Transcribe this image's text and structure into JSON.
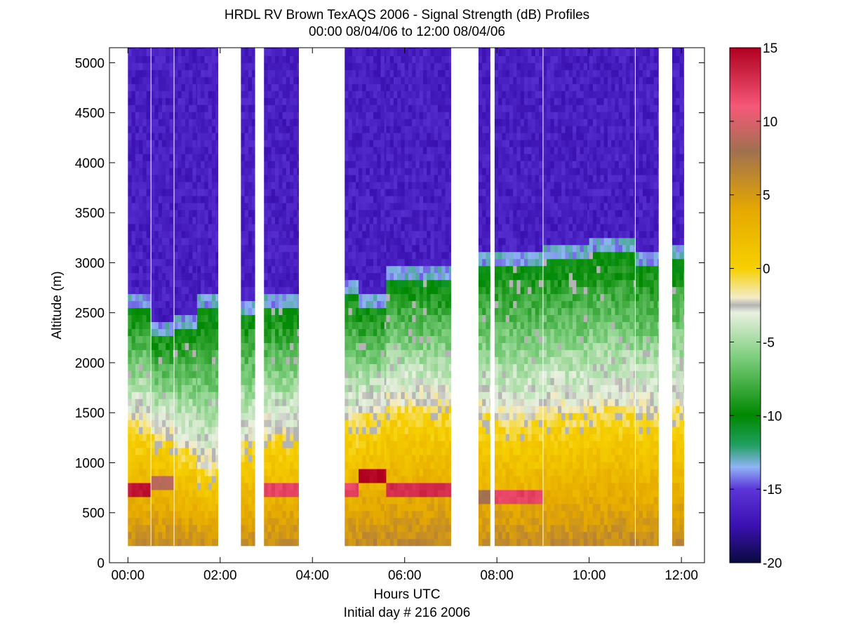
{
  "chart_data": {
    "type": "heatmap",
    "title": "HRDL RV Brown TexAQS 2006 - Signal Strength (dB) Profiles",
    "subtitle": "00:00 08/04/06 to 12:00 08/04/06",
    "xlabel": "Hours UTC",
    "footer": "Initial day # 216  2006",
    "ylabel": "Altitude (m)",
    "x_unit": "hours UTC",
    "xlim": [
      -0.4,
      12.5
    ],
    "ylim": [
      0,
      5150
    ],
    "x_ticks": [
      {
        "value": 0,
        "label": "00:00"
      },
      {
        "value": 2,
        "label": "02:00"
      },
      {
        "value": 4,
        "label": "04:00"
      },
      {
        "value": 6,
        "label": "06:00"
      },
      {
        "value": 8,
        "label": "08:00"
      },
      {
        "value": 10,
        "label": "10:00"
      },
      {
        "value": 12,
        "label": "12:00"
      }
    ],
    "y_ticks": [
      {
        "value": 0,
        "label": "0"
      },
      {
        "value": 500,
        "label": "500"
      },
      {
        "value": 1000,
        "label": "1000"
      },
      {
        "value": 1500,
        "label": "1500"
      },
      {
        "value": 2000,
        "label": "2000"
      },
      {
        "value": 2500,
        "label": "2500"
      },
      {
        "value": 3000,
        "label": "3000"
      },
      {
        "value": 3500,
        "label": "3500"
      },
      {
        "value": 4000,
        "label": "4000"
      },
      {
        "value": 4500,
        "label": "4500"
      },
      {
        "value": 5000,
        "label": "5000"
      }
    ],
    "colorbar": {
      "label_unit": "dB",
      "range": [
        -20,
        15
      ],
      "ticks": [
        {
          "value": 15,
          "label": "15"
        },
        {
          "value": 10,
          "label": "10"
        },
        {
          "value": 5,
          "label": "5"
        },
        {
          "value": 0,
          "label": "0"
        },
        {
          "value": -5,
          "label": "-5"
        },
        {
          "value": -10,
          "label": "-10"
        },
        {
          "value": -15,
          "label": "-15"
        },
        {
          "value": -20,
          "label": "-20"
        }
      ],
      "stops": [
        {
          "value": -20,
          "color": "#0a0a40"
        },
        {
          "value": -17.5,
          "color": "#3a10b0"
        },
        {
          "value": -15,
          "color": "#5c35d8"
        },
        {
          "value": -13.5,
          "color": "#8fb4f5"
        },
        {
          "value": -12,
          "color": "#20a060"
        },
        {
          "value": -10,
          "color": "#008800"
        },
        {
          "value": -6,
          "color": "#7fcf7f"
        },
        {
          "value": -3,
          "color": "#e9f0e0"
        },
        {
          "value": -2.5,
          "color": "#b4b4b4"
        },
        {
          "value": -2,
          "color": "#f4ecc8"
        },
        {
          "value": 0,
          "color": "#f6d000"
        },
        {
          "value": 4,
          "color": "#e5a800"
        },
        {
          "value": 8,
          "color": "#a07050"
        },
        {
          "value": 11,
          "color": "#f65878"
        },
        {
          "value": 15,
          "color": "#b00020"
        }
      ]
    },
    "altitude_range": [
      170,
      5150
    ],
    "profiles": [
      {
        "start": 0.0,
        "end": 0.5,
        "top_boundary_m": 2620,
        "mixed_layer_top_m": 1400,
        "bright_band_m": 700,
        "bright_band_db": 14
      },
      {
        "start": 0.5,
        "end": 1.0,
        "top_boundary_m": 2330,
        "mixed_layer_top_m": 1300,
        "bright_band_m": 780,
        "bright_band_db": 9
      },
      {
        "start": 1.0,
        "end": 1.5,
        "top_boundary_m": 2400,
        "mixed_layer_top_m": 1150,
        "bright_band_m": 0,
        "bright_band_db": 0
      },
      {
        "start": 1.5,
        "end": 1.95,
        "top_boundary_m": 2580,
        "mixed_layer_top_m": 950,
        "bright_band_m": 0,
        "bright_band_db": 0
      },
      {
        "start": 2.45,
        "end": 2.75,
        "top_boundary_m": 2570,
        "mixed_layer_top_m": 1200,
        "bright_band_m": 0,
        "bright_band_db": 0
      },
      {
        "start": 2.95,
        "end": 3.7,
        "top_boundary_m": 2600,
        "mixed_layer_top_m": 1300,
        "bright_band_m": 710,
        "bright_band_db": 12
      },
      {
        "start": 4.7,
        "end": 5.0,
        "top_boundary_m": 2750,
        "mixed_layer_top_m": 1400,
        "bright_band_m": 760,
        "bright_band_db": 12
      },
      {
        "start": 5.0,
        "end": 5.6,
        "top_boundary_m": 2600,
        "mixed_layer_top_m": 1500,
        "bright_band_m": 840,
        "bright_band_db": 15
      },
      {
        "start": 5.6,
        "end": 7.0,
        "top_boundary_m": 2870,
        "mixed_layer_top_m": 1600,
        "bright_band_m": 740,
        "bright_band_db": 13
      },
      {
        "start": 7.6,
        "end": 7.85,
        "top_boundary_m": 3000,
        "mixed_layer_top_m": 1500,
        "bright_band_m": 680,
        "bright_band_db": 8
      },
      {
        "start": 7.95,
        "end": 9.0,
        "top_boundary_m": 3050,
        "mixed_layer_top_m": 1450,
        "bright_band_m": 640,
        "bright_band_db": 12
      },
      {
        "start": 9.0,
        "end": 10.0,
        "top_boundary_m": 3100,
        "mixed_layer_top_m": 1500,
        "bright_band_m": 0,
        "bright_band_db": 0
      },
      {
        "start": 10.0,
        "end": 11.0,
        "top_boundary_m": 3150,
        "mixed_layer_top_m": 1550,
        "bright_band_m": 0,
        "bright_band_db": 0
      },
      {
        "start": 11.0,
        "end": 11.5,
        "top_boundary_m": 3050,
        "mixed_layer_top_m": 1500,
        "bright_band_m": 0,
        "bright_band_db": 0
      },
      {
        "start": 11.8,
        "end": 12.05,
        "top_boundary_m": 3100,
        "mixed_layer_top_m": 1550,
        "bright_band_m": 0,
        "bright_band_db": 0
      }
    ],
    "vertical_gaps_hours": [
      0.5,
      1.0,
      9.0,
      11.0
    ],
    "grid": false,
    "legend": "colorbar-right"
  }
}
